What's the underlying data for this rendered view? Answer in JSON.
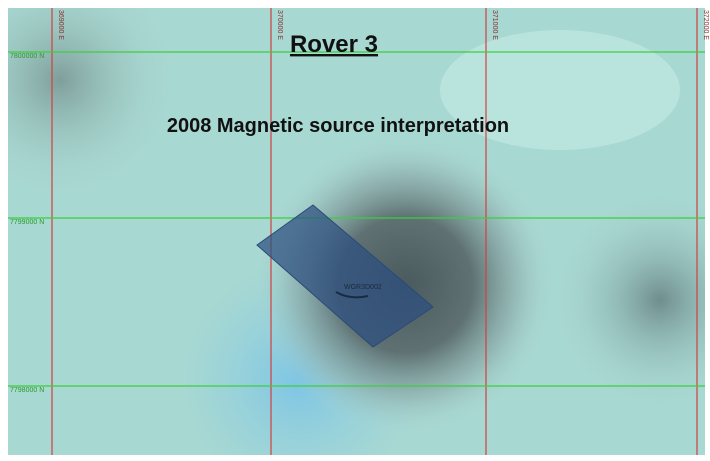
{
  "title": "Rover 3",
  "subtitle": "2008 Magnetic source interpretation",
  "grid": {
    "eastings": [
      "369000 E",
      "370000 E",
      "371000 E",
      "372000 E"
    ],
    "northings": [
      "7800000 N",
      "7799000 N",
      "7798000 N"
    ]
  },
  "features": [
    {
      "label": "WGR3D002"
    }
  ]
}
